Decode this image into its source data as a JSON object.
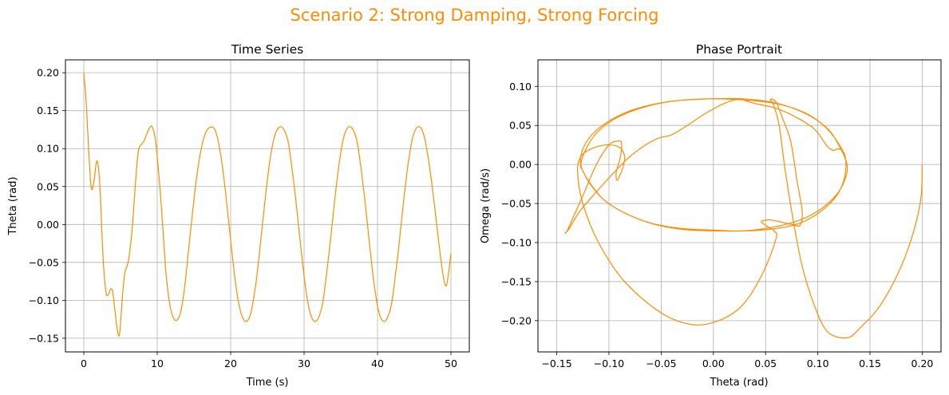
{
  "figure": {
    "suptitle": "Scenario 2: Strong Damping, Strong Forcing",
    "suptitle_color": "#ff8c00"
  },
  "chart_data": [
    {
      "type": "line",
      "title": "Time Series",
      "xlabel": "Time (s)",
      "ylabel": "Theta (rad)",
      "xlim": [
        -2.5,
        52.5
      ],
      "ylim": [
        -0.168,
        0.217
      ],
      "xticks": [
        0,
        10,
        20,
        30,
        40,
        50
      ],
      "xtick_labels": [
        "0",
        "10",
        "20",
        "30",
        "40",
        "50"
      ],
      "yticks": [
        -0.15,
        -0.1,
        -0.05,
        0.0,
        0.05,
        0.1,
        0.15,
        0.2
      ],
      "ytick_labels": [
        "−0.15",
        "−0.10",
        "−0.05",
        "0.00",
        "0.05",
        "0.10",
        "0.15",
        "0.20"
      ],
      "grid": true,
      "line_color": "#ff8c00",
      "series": [
        {
          "x": [
            0,
            0.3,
            0.6,
            0.9,
            1.1,
            1.4,
            1.8,
            2.2,
            2.6,
            3.0,
            3.3,
            3.6,
            3.9,
            4.2,
            4.5,
            4.8,
            5.0,
            5.3,
            5.6,
            5.9,
            6.2,
            6.6,
            7.0,
            7.4,
            7.8,
            8.2,
            8.6,
            9.0,
            9.3,
            9.7,
            10.0,
            10.4,
            10.8,
            11.2,
            11.7,
            12.2,
            12.7,
            13.2,
            13.7,
            14.2,
            14.8,
            15.4,
            16.0,
            16.6,
            17.2,
            17.8,
            18.3,
            18.9,
            19.5,
            20.1,
            20.7,
            21.3,
            21.9,
            22.5,
            23.0,
            23.6,
            24.2,
            24.8,
            25.4,
            26.0,
            26.6,
            27.2,
            27.8,
            28.3,
            28.9,
            29.5,
            30.1,
            30.7,
            31.3,
            31.9,
            32.5,
            33.0,
            33.6,
            34.2,
            34.8,
            35.4,
            36.0,
            36.6,
            37.2,
            37.7,
            38.3,
            38.9,
            39.5,
            40.1,
            40.7,
            41.3,
            41.9,
            42.4,
            43.0,
            43.6,
            44.2,
            44.8,
            45.4,
            46.0,
            46.5,
            47.1,
            47.7,
            48.3,
            48.9,
            49.4,
            50.0
          ],
          "y": [
            0.2,
            0.165,
            0.11,
            0.06,
            0.046,
            0.058,
            0.084,
            0.05,
            -0.04,
            -0.088,
            -0.093,
            -0.086,
            -0.087,
            -0.11,
            -0.135,
            -0.147,
            -0.13,
            -0.09,
            -0.063,
            -0.055,
            -0.04,
            -0.005,
            0.05,
            0.095,
            0.105,
            0.11,
            0.12,
            0.128,
            0.129,
            0.115,
            0.09,
            0.045,
            -0.01,
            -0.065,
            -0.105,
            -0.123,
            -0.126,
            -0.115,
            -0.085,
            -0.04,
            0.015,
            0.065,
            0.1,
            0.121,
            0.128,
            0.126,
            0.11,
            0.075,
            0.025,
            -0.03,
            -0.08,
            -0.113,
            -0.127,
            -0.124,
            -0.105,
            -0.065,
            -0.012,
            0.042,
            0.088,
            0.117,
            0.128,
            0.126,
            0.11,
            0.078,
            0.03,
            -0.025,
            -0.076,
            -0.112,
            -0.127,
            -0.124,
            -0.105,
            -0.07,
            -0.02,
            0.035,
            0.082,
            0.115,
            0.128,
            0.126,
            0.11,
            0.078,
            0.03,
            -0.025,
            -0.076,
            -0.112,
            -0.127,
            -0.124,
            -0.105,
            -0.07,
            -0.02,
            0.035,
            0.082,
            0.115,
            0.128,
            0.126,
            0.11,
            0.075,
            0.03,
            -0.02,
            -0.065,
            -0.08,
            -0.038
          ]
        }
      ]
    },
    {
      "type": "line",
      "title": "Phase Portrait",
      "xlabel": "Theta (rad)",
      "ylabel": "Omega (rad/s)",
      "xlim": [
        -0.168,
        0.218
      ],
      "ylim": [
        -0.24,
        0.134
      ],
      "xticks": [
        -0.15,
        -0.1,
        -0.05,
        0.0,
        0.05,
        0.1,
        0.15,
        0.2
      ],
      "xtick_labels": [
        "−0.15",
        "−0.10",
        "−0.05",
        "0.00",
        "0.05",
        "0.10",
        "0.15",
        "0.20"
      ],
      "yticks": [
        -0.2,
        -0.15,
        -0.1,
        -0.05,
        0.0,
        0.05,
        0.1
      ],
      "ytick_labels": [
        "−0.20",
        "−0.15",
        "−0.10",
        "−0.05",
        "0.00",
        "0.05",
        "0.10"
      ],
      "grid": true,
      "line_color": "#ff8c00",
      "series": [
        {
          "x": [
            0.2,
            0.199,
            0.193,
            0.18,
            0.16,
            0.14,
            0.128,
            0.11,
            0.098,
            0.085,
            0.075,
            0.068,
            0.063,
            0.058,
            0.055,
            0.055,
            0.06,
            0.066,
            0.074,
            0.08,
            0.085,
            0.083,
            0.076,
            0.066,
            0.054,
            0.046,
            0.05,
            0.058,
            0.06,
            0.047,
            0.028,
            0.005,
            -0.02,
            -0.05,
            -0.085,
            -0.11,
            -0.125,
            -0.13,
            -0.127,
            -0.117,
            -0.103,
            -0.09,
            -0.085,
            -0.087,
            -0.092,
            -0.093,
            -0.089,
            -0.088,
            -0.092,
            -0.1,
            -0.112,
            -0.125,
            -0.135,
            -0.14,
            -0.142,
            -0.138,
            -0.128,
            -0.112,
            -0.095,
            -0.08,
            -0.065,
            -0.052,
            -0.04,
            -0.025,
            -0.008,
            0.01,
            0.025,
            0.03,
            0.04,
            0.06,
            0.08,
            0.097,
            0.108,
            0.112,
            0.115,
            0.12,
            0.125,
            0.127,
            0.125,
            0.118,
            0.103,
            0.083,
            0.06,
            0.032,
            0.0,
            -0.03,
            -0.058,
            -0.085,
            -0.105,
            -0.118,
            -0.125,
            -0.127,
            -0.122,
            -0.112,
            -0.095,
            -0.07,
            -0.04,
            -0.005,
            0.03,
            0.062,
            0.09,
            0.11,
            0.122,
            0.128,
            0.127,
            0.12,
            0.105,
            0.085,
            0.058,
            0.028,
            0.0,
            -0.03,
            -0.06,
            -0.085,
            -0.105,
            -0.12,
            -0.127,
            -0.125,
            -0.115,
            -0.097,
            -0.075,
            -0.045,
            -0.01,
            0.025,
            0.06,
            0.088,
            0.108,
            0.122,
            0.128
          ],
          "y": [
            0.0,
            -0.04,
            -0.08,
            -0.13,
            -0.18,
            -0.21,
            -0.222,
            -0.215,
            -0.185,
            -0.13,
            -0.06,
            0.0,
            0.05,
            0.075,
            0.082,
            0.084,
            0.08,
            0.06,
            0.03,
            -0.02,
            -0.06,
            -0.078,
            -0.077,
            -0.074,
            -0.071,
            -0.073,
            -0.078,
            -0.085,
            -0.095,
            -0.14,
            -0.18,
            -0.2,
            -0.205,
            -0.19,
            -0.15,
            -0.1,
            -0.05,
            -0.01,
            0.01,
            0.02,
            0.025,
            0.022,
            0.01,
            -0.005,
            -0.02,
            -0.01,
            0.01,
            0.028,
            0.03,
            0.025,
            0.0,
            -0.04,
            -0.07,
            -0.085,
            -0.088,
            -0.082,
            -0.06,
            -0.035,
            -0.01,
            0.01,
            0.025,
            0.034,
            0.038,
            0.05,
            0.065,
            0.078,
            0.084,
            0.082,
            0.078,
            0.072,
            0.06,
            0.045,
            0.025,
            0.02,
            0.018,
            0.02,
            0.015,
            0.0,
            -0.02,
            -0.04,
            -0.06,
            -0.075,
            -0.082,
            -0.085,
            -0.085,
            -0.083,
            -0.076,
            -0.062,
            -0.045,
            -0.025,
            -0.008,
            0.0,
            0.02,
            0.04,
            0.058,
            0.072,
            0.081,
            0.084,
            0.084,
            0.078,
            0.064,
            0.045,
            0.02,
            0.0,
            -0.015,
            -0.035,
            -0.055,
            -0.07,
            -0.08,
            -0.085,
            -0.084,
            -0.082,
            -0.075,
            -0.062,
            -0.045,
            -0.02,
            0.0,
            0.02,
            0.04,
            0.058,
            0.071,
            0.08,
            0.084,
            0.083,
            0.078,
            0.066,
            0.047,
            0.022,
            0.0
          ]
        }
      ]
    }
  ]
}
